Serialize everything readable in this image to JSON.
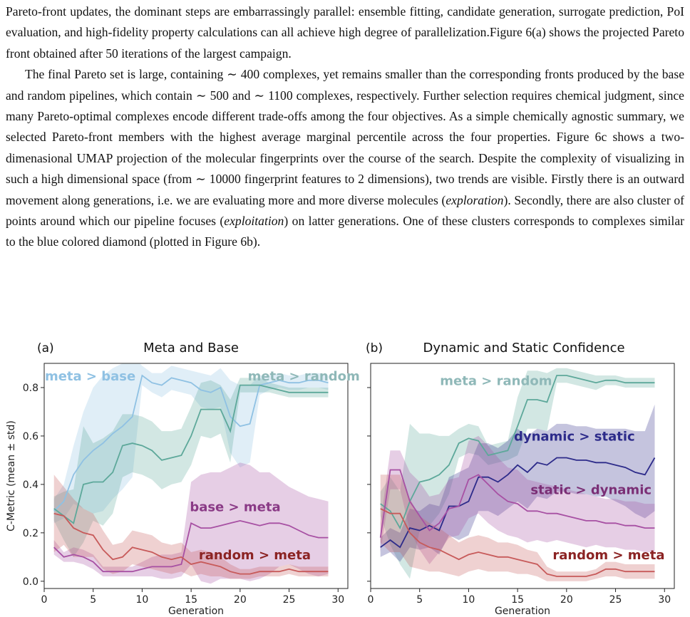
{
  "paragraphs": [
    {
      "indent": false,
      "runs": [
        {
          "t": "Pareto-front updates, the dominant steps are embarrassingly parallel: ensemble fitting, candidate generation, surrogate prediction, PoI evaluation, and high-fidelity property calculations can all achieve high degree of parallelization.Figure 6(a) shows the projected Pareto front obtained after 50 iterations of the largest campaign."
        }
      ]
    },
    {
      "indent": true,
      "runs": [
        {
          "t": "The final Pareto set is large, containing ∼ 400 complexes, yet remains smaller than the corresponding fronts produced by the base and random pipelines, which contain ∼ 500 and ∼ 1100 complexes, respectively. Further selection requires chemical judgment, since many Pareto-optimal complexes encode different trade-offs among the four objectives. As a simple chemically agnostic summary, we selected Pareto-front members with the highest average marginal percentile across the four properties. Figure  6c shows a two-dimenasional UMAP projection of the molecular fingerprints over the course of the search. Despite the complexity of visualizing in such a high dimensional space (from ∼ 10000 fingerprint features to 2 dimensions), two trends are visible. Firstly there is an outward movement along generations, i.e. we are evaluating more and more diverse molecules ("
        },
        {
          "t": "exploration",
          "i": true
        },
        {
          "t": "). Secondly, there are also cluster of points around which our pipeline focuses ("
        },
        {
          "t": "exploitation",
          "i": true
        },
        {
          "t": ") on latter generations. One of these clusters corresponds to complexes similar to the blue colored diamond (plotted in Figure 6b)."
        }
      ]
    }
  ],
  "chart_data": [
    {
      "type": "line",
      "panel_label": "(a)",
      "title": "Meta and Base",
      "xlabel": "Generation",
      "ylabel": "C-Metric (mean ± std)",
      "xlim": [
        0,
        31
      ],
      "ylim": [
        -0.03,
        0.9
      ],
      "xticks": [
        0,
        5,
        10,
        15,
        20,
        25,
        30
      ],
      "yticks": [
        0.0,
        0.2,
        0.4,
        0.6,
        0.8
      ],
      "grid": false,
      "series": [
        {
          "name": "meta > base",
          "color": "#8fc1e3",
          "x": [
            1,
            2,
            3,
            4,
            5,
            6,
            7,
            8,
            9,
            10,
            11,
            12,
            13,
            14,
            15,
            16,
            17,
            18,
            19,
            20,
            21,
            22,
            23,
            24,
            25,
            26,
            27,
            28,
            29
          ],
          "y": [
            0.29,
            0.33,
            0.44,
            0.5,
            0.54,
            0.57,
            0.61,
            0.64,
            0.68,
            0.85,
            0.82,
            0.81,
            0.84,
            0.83,
            0.82,
            0.79,
            0.78,
            0.8,
            0.68,
            0.64,
            0.65,
            0.81,
            0.82,
            0.83,
            0.82,
            0.82,
            0.83,
            0.83,
            0.82
          ],
          "std": [
            0.05,
            0.07,
            0.12,
            0.2,
            0.26,
            0.28,
            0.27,
            0.26,
            0.25,
            0.04,
            0.04,
            0.05,
            0.05,
            0.05,
            0.05,
            0.07,
            0.07,
            0.08,
            0.15,
            0.17,
            0.16,
            0.04,
            0.03,
            0.03,
            0.03,
            0.03,
            0.03,
            0.03,
            0.03
          ]
        },
        {
          "name": "meta > random",
          "color": "#5da89a",
          "x": [
            1,
            2,
            3,
            4,
            5,
            6,
            7,
            8,
            9,
            10,
            11,
            12,
            13,
            14,
            15,
            16,
            17,
            18,
            19,
            20,
            21,
            22,
            23,
            24,
            25,
            26,
            27,
            28,
            29
          ],
          "y": [
            0.3,
            0.27,
            0.24,
            0.4,
            0.41,
            0.41,
            0.45,
            0.56,
            0.57,
            0.56,
            0.54,
            0.5,
            0.51,
            0.52,
            0.6,
            0.71,
            0.71,
            0.71,
            0.62,
            0.81,
            0.81,
            0.81,
            0.8,
            0.79,
            0.78,
            0.78,
            0.78,
            0.78,
            0.78
          ],
          "std": [
            0.05,
            0.1,
            0.14,
            0.24,
            0.16,
            0.18,
            0.17,
            0.13,
            0.12,
            0.12,
            0.12,
            0.12,
            0.11,
            0.11,
            0.12,
            0.11,
            0.12,
            0.1,
            0.13,
            0.03,
            0.03,
            0.03,
            0.02,
            0.02,
            0.02,
            0.02,
            0.02,
            0.02,
            0.02
          ]
        },
        {
          "name": "base > meta",
          "color": "#a750a3",
          "x": [
            1,
            2,
            3,
            4,
            5,
            6,
            7,
            8,
            9,
            10,
            11,
            12,
            13,
            14,
            15,
            16,
            17,
            18,
            19,
            20,
            21,
            22,
            23,
            24,
            25,
            26,
            27,
            28,
            29
          ],
          "y": [
            0.14,
            0.1,
            0.11,
            0.1,
            0.08,
            0.04,
            0.04,
            0.04,
            0.04,
            0.05,
            0.06,
            0.06,
            0.06,
            0.07,
            0.24,
            0.22,
            0.22,
            0.23,
            0.24,
            0.25,
            0.24,
            0.23,
            0.24,
            0.24,
            0.23,
            0.21,
            0.19,
            0.18,
            0.18
          ],
          "std": [
            0.03,
            0.02,
            0.03,
            0.03,
            0.03,
            0.02,
            0.02,
            0.02,
            0.02,
            0.03,
            0.04,
            0.05,
            0.05,
            0.05,
            0.17,
            0.22,
            0.23,
            0.22,
            0.23,
            0.24,
            0.24,
            0.22,
            0.21,
            0.18,
            0.16,
            0.16,
            0.16,
            0.16,
            0.15
          ]
        },
        {
          "name": "random > meta",
          "color": "#c75a5a",
          "x": [
            1,
            2,
            3,
            4,
            5,
            6,
            7,
            8,
            9,
            10,
            11,
            12,
            13,
            14,
            15,
            16,
            17,
            18,
            19,
            20,
            21,
            22,
            23,
            24,
            25,
            26,
            27,
            28,
            29
          ],
          "y": [
            0.28,
            0.27,
            0.22,
            0.2,
            0.19,
            0.13,
            0.09,
            0.1,
            0.14,
            0.13,
            0.12,
            0.1,
            0.09,
            0.1,
            0.07,
            0.08,
            0.07,
            0.06,
            0.04,
            0.03,
            0.03,
            0.04,
            0.04,
            0.04,
            0.05,
            0.04,
            0.04,
            0.04,
            0.04
          ],
          "std": [
            0.16,
            0.12,
            0.12,
            0.1,
            0.09,
            0.08,
            0.06,
            0.06,
            0.07,
            0.07,
            0.07,
            0.06,
            0.06,
            0.06,
            0.05,
            0.05,
            0.05,
            0.04,
            0.03,
            0.02,
            0.02,
            0.02,
            0.02,
            0.02,
            0.02,
            0.02,
            0.02,
            0.02,
            0.02
          ]
        }
      ]
    },
    {
      "type": "line",
      "panel_label": "(b)",
      "title": "Dynamic and Static Confidence",
      "xlabel": "Generation",
      "ylabel": "",
      "xlim": [
        0,
        31
      ],
      "ylim": [
        -0.03,
        0.9
      ],
      "xticks": [
        0,
        5,
        10,
        15,
        20,
        25,
        30
      ],
      "yticks": [
        0.0,
        0.2,
        0.4,
        0.6,
        0.8
      ],
      "grid": false,
      "series": [
        {
          "name": "meta > random",
          "color": "#5da89a",
          "x": [
            1,
            2,
            3,
            4,
            5,
            6,
            7,
            8,
            9,
            10,
            11,
            12,
            13,
            14,
            15,
            16,
            17,
            18,
            19,
            20,
            21,
            22,
            23,
            24,
            25,
            26,
            27,
            28,
            29
          ],
          "y": [
            0.32,
            0.29,
            0.22,
            0.33,
            0.41,
            0.42,
            0.44,
            0.48,
            0.57,
            0.59,
            0.58,
            0.52,
            0.53,
            0.54,
            0.64,
            0.75,
            0.75,
            0.74,
            0.85,
            0.85,
            0.84,
            0.83,
            0.82,
            0.83,
            0.83,
            0.82,
            0.82,
            0.82,
            0.82
          ],
          "std": [
            0.05,
            0.14,
            0.15,
            0.32,
            0.2,
            0.19,
            0.16,
            0.12,
            0.06,
            0.06,
            0.06,
            0.04,
            0.04,
            0.04,
            0.12,
            0.12,
            0.12,
            0.12,
            0.03,
            0.03,
            0.03,
            0.03,
            0.03,
            0.02,
            0.02,
            0.02,
            0.02,
            0.02,
            0.02
          ]
        },
        {
          "name": "dynamic > static",
          "color": "#2d2b8a",
          "x": [
            1,
            2,
            3,
            4,
            5,
            6,
            7,
            8,
            9,
            10,
            11,
            12,
            13,
            14,
            15,
            16,
            17,
            18,
            19,
            20,
            21,
            22,
            23,
            24,
            25,
            26,
            27,
            28,
            29
          ],
          "y": [
            0.14,
            0.17,
            0.14,
            0.22,
            0.21,
            0.23,
            0.21,
            0.31,
            0.31,
            0.33,
            0.43,
            0.43,
            0.41,
            0.44,
            0.48,
            0.45,
            0.49,
            0.48,
            0.51,
            0.51,
            0.5,
            0.5,
            0.49,
            0.49,
            0.48,
            0.47,
            0.45,
            0.44,
            0.51
          ],
          "std": [
            0.04,
            0.05,
            0.06,
            0.08,
            0.08,
            0.09,
            0.1,
            0.12,
            0.14,
            0.14,
            0.14,
            0.14,
            0.14,
            0.14,
            0.15,
            0.15,
            0.14,
            0.14,
            0.14,
            0.14,
            0.14,
            0.14,
            0.14,
            0.14,
            0.15,
            0.16,
            0.17,
            0.18,
            0.22
          ]
        },
        {
          "name": "static > dynamic",
          "color": "#a750a3",
          "x": [
            1,
            2,
            3,
            4,
            5,
            6,
            7,
            8,
            9,
            10,
            11,
            12,
            13,
            14,
            15,
            16,
            17,
            18,
            19,
            20,
            21,
            22,
            23,
            24,
            25,
            26,
            27,
            28,
            29
          ],
          "y": [
            0.18,
            0.46,
            0.46,
            0.33,
            0.27,
            0.21,
            0.24,
            0.3,
            0.31,
            0.42,
            0.44,
            0.4,
            0.36,
            0.33,
            0.32,
            0.29,
            0.29,
            0.28,
            0.28,
            0.27,
            0.26,
            0.25,
            0.25,
            0.24,
            0.24,
            0.23,
            0.23,
            0.22,
            0.22
          ],
          "std": [
            0.06,
            0.08,
            0.08,
            0.12,
            0.14,
            0.14,
            0.12,
            0.12,
            0.12,
            0.16,
            0.16,
            0.16,
            0.15,
            0.14,
            0.14,
            0.13,
            0.12,
            0.12,
            0.11,
            0.11,
            0.11,
            0.11,
            0.1,
            0.1,
            0.1,
            0.1,
            0.1,
            0.1,
            0.1
          ]
        },
        {
          "name": "random > meta",
          "color": "#c75a5a",
          "x": [
            1,
            2,
            3,
            4,
            5,
            6,
            7,
            8,
            9,
            10,
            11,
            12,
            13,
            14,
            15,
            16,
            17,
            18,
            19,
            20,
            21,
            22,
            23,
            24,
            25,
            26,
            27,
            28,
            29
          ],
          "y": [
            0.3,
            0.28,
            0.28,
            0.2,
            0.16,
            0.14,
            0.13,
            0.11,
            0.09,
            0.11,
            0.12,
            0.11,
            0.1,
            0.1,
            0.09,
            0.08,
            0.07,
            0.03,
            0.02,
            0.02,
            0.02,
            0.02,
            0.03,
            0.05,
            0.05,
            0.04,
            0.04,
            0.04,
            0.04
          ],
          "std": [
            0.14,
            0.16,
            0.16,
            0.14,
            0.11,
            0.1,
            0.09,
            0.08,
            0.07,
            0.07,
            0.07,
            0.07,
            0.06,
            0.06,
            0.06,
            0.05,
            0.05,
            0.03,
            0.02,
            0.02,
            0.02,
            0.02,
            0.02,
            0.03,
            0.03,
            0.03,
            0.03,
            0.03,
            0.03
          ]
        }
      ]
    }
  ],
  "annotations": [
    [
      {
        "text": "meta > base",
        "color": "#8fc1e3",
        "x": 4.7,
        "y": 0.83
      },
      {
        "text": "meta > random",
        "color": "#8fb8b8",
        "x": 26.5,
        "y": 0.83
      },
      {
        "text": "base > meta",
        "color": "#8a3a86",
        "x": 19.5,
        "y": 0.29
      },
      {
        "text": "random > meta",
        "color": "#8b2323",
        "x": 21.5,
        "y": 0.09
      }
    ],
    [
      {
        "text": "meta > random",
        "color": "#8fb8b8",
        "x": 12.8,
        "y": 0.81
      },
      {
        "text": "dynamic > static",
        "color": "#2d2b8a",
        "x": 20.8,
        "y": 0.58
      },
      {
        "text": "static > dynamic",
        "color": "#7a2e75",
        "x": 22.5,
        "y": 0.36
      },
      {
        "text": "random > meta",
        "color": "#8b2323",
        "x": 24.3,
        "y": 0.09
      }
    ]
  ]
}
